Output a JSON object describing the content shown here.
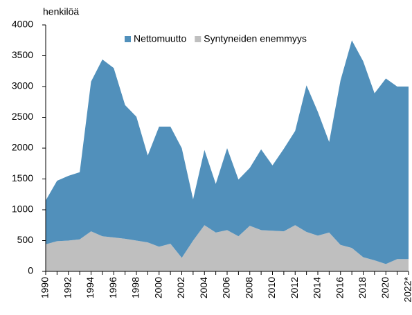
{
  "chart_data": {
    "type": "stacked_area",
    "y_label": "henkilöä",
    "categories": [
      "1990",
      null,
      "1992",
      null,
      "1994",
      null,
      "1996",
      null,
      "1998",
      null,
      "2000",
      null,
      "2002",
      null,
      "2004",
      null,
      "2006",
      null,
      "2008",
      null,
      "2010",
      null,
      "2012",
      null,
      "2014",
      null,
      "2016",
      null,
      "2018",
      null,
      "2020",
      null,
      "2022*"
    ],
    "series": [
      {
        "name": "Nettomuutto",
        "color": "#5190bb",
        "values": [
          710,
          980,
          1050,
          1090,
          2430,
          2870,
          2750,
          2170,
          2010,
          1410,
          1950,
          1900,
          1780,
          670,
          1220,
          790,
          1330,
          920,
          940,
          1310,
          1060,
          1340,
          1530,
          2380,
          2010,
          1470,
          2670,
          3370,
          3180,
          2710,
          3010,
          2800,
          2800
        ]
      },
      {
        "name": "Syntyneiden enemmyys",
        "color": "#bfbfbf",
        "values": [
          440,
          490,
          500,
          520,
          650,
          570,
          550,
          530,
          500,
          470,
          400,
          450,
          220,
          500,
          750,
          630,
          670,
          570,
          740,
          670,
          660,
          650,
          750,
          640,
          580,
          630,
          430,
          380,
          230,
          180,
          120,
          200,
          200
        ]
      }
    ],
    "ylim": [
      0,
      4000
    ],
    "yticks": [
      0,
      500,
      1000,
      1500,
      2000,
      2500,
      3000,
      3500,
      4000
    ],
    "legend": "top"
  }
}
